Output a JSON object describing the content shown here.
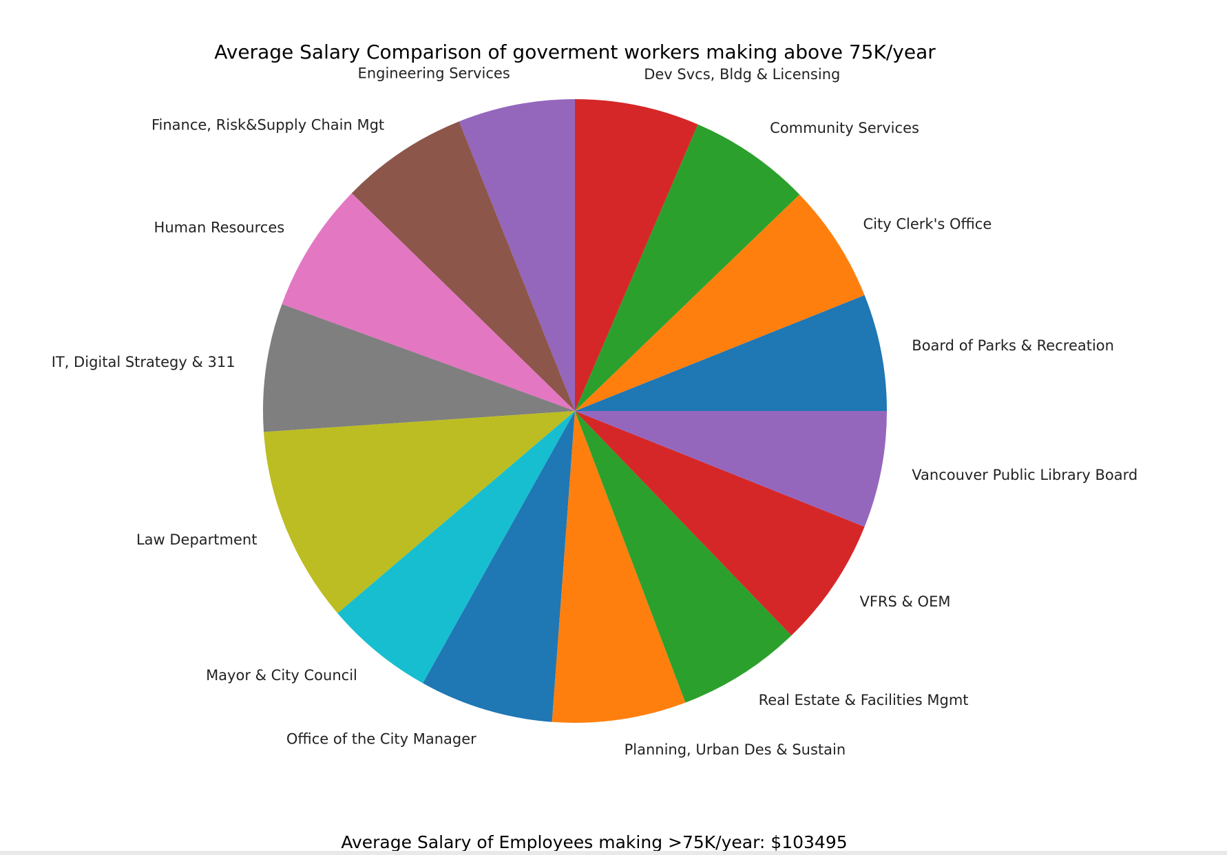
{
  "chart_data": {
    "type": "pie",
    "title": "Average Salary Comparison of goverment workers making above 75K/year",
    "start_angle_deg": 0,
    "direction": "counterclockwise",
    "labels": [
      "Board of Parks & Recreation",
      "City Clerk's Office",
      "Community Services",
      "Dev Svcs, Bldg & Licensing",
      "Engineering Services",
      "Finance, Risk&Supply Chain Mgt",
      "Human Resources",
      "IT, Digital Strategy & 311",
      "Law Department",
      "Mayor & City Council",
      "Office of the City Manager",
      "Planning, Urban Des & Sustain",
      "Real Estate & Facilities Mgmt",
      "VFRS & OEM",
      "Vancouver Public Library Board"
    ],
    "values": [
      6.2,
      6.3,
      6.5,
      6.6,
      6.2,
      6.8,
      6.9,
      6.8,
      10.4,
      5.8,
      7.1,
      7.1,
      6.6,
      6.9,
      6.2
    ],
    "colors": [
      "#1f77b4",
      "#ff7f0e",
      "#2ca02c",
      "#d62728",
      "#9467bd",
      "#8c564b",
      "#e377c2",
      "#7f7f7f",
      "#bcbd22",
      "#17becf",
      "#1f77b4",
      "#ff7f0e",
      "#2ca02c",
      "#d62728",
      "#9467bd"
    ],
    "footer": "Average Salary of Employees making >75K/year: $103495"
  }
}
